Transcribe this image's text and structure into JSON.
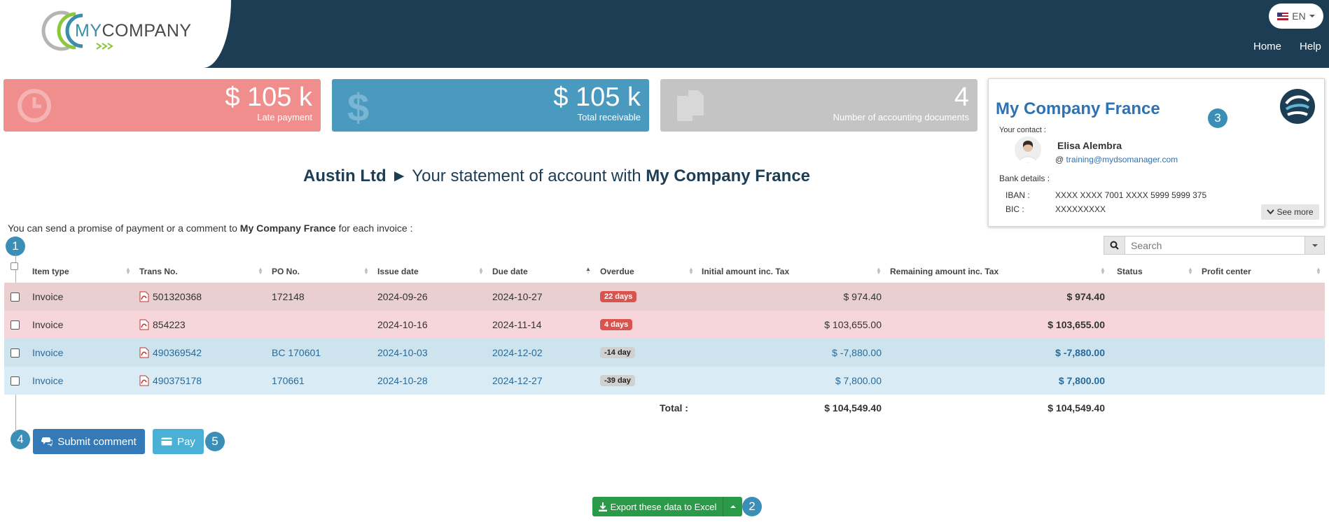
{
  "brand": {
    "prefix": "MY",
    "suffix": "COMPANY"
  },
  "header": {
    "language": "EN",
    "nav": [
      {
        "label": "Home"
      },
      {
        "label": "Help"
      }
    ]
  },
  "kpis": [
    {
      "value": "$ 105 k",
      "label": "Late payment",
      "color": "#f08d8d",
      "icon": "clock-icon"
    },
    {
      "value": "$ 105 k",
      "label": "Total receivable",
      "color": "#4a9abf",
      "icon": "dollar-icon"
    },
    {
      "value": "4",
      "label": "Number of accounting documents",
      "color": "#c4c4c4",
      "icon": "documents-icon"
    }
  ],
  "contact_card": {
    "company": "My Company France",
    "contact_label": "Your contact :",
    "contact_name": "Elisa Alembra",
    "email_prefix": "@",
    "email": "training@mydsomanager.com",
    "bank_label": "Bank details :",
    "iban_label": "IBAN :",
    "iban": "XXXX XXXX 7001 XXXX 5999 5999 375",
    "bic_label": "BIC :",
    "bic": "XXXXXXXXX",
    "see_more": "See more"
  },
  "steps": [
    "1",
    "2",
    "3",
    "4",
    "5"
  ],
  "heading": {
    "customer": "Austin Ltd",
    "arrow": "►",
    "middle": "Your statement of account with",
    "company": "My Company France"
  },
  "intro": {
    "before": "You can send a promise of payment or a comment to",
    "company": "My Company France",
    "after": "for each invoice :"
  },
  "search": {
    "placeholder": "Search"
  },
  "table": {
    "columns": [
      "Item type",
      "Trans No.",
      "PO No.",
      "Issue date",
      "Due date",
      "Overdue",
      "Initial amount inc. Tax",
      "Remaining amount inc. Tax",
      "Status",
      "Profit center"
    ],
    "rows": [
      {
        "type": "Invoice",
        "trans": "501320368",
        "po": "172148",
        "issue": "2024-09-26",
        "due": "2024-10-27",
        "overdue": "22 days",
        "initial": "$ 974.40",
        "remaining": "$ 974.40",
        "status": "",
        "profit": ""
      },
      {
        "type": "Invoice",
        "trans": "854223",
        "po": "",
        "issue": "2024-10-16",
        "due": "2024-11-14",
        "overdue": "4 days",
        "initial": "$ 103,655.00",
        "remaining": "$ 103,655.00",
        "status": "",
        "profit": ""
      },
      {
        "type": "Invoice",
        "trans": "490369542",
        "po": "BC 170601",
        "issue": "2024-10-03",
        "due": "2024-12-02",
        "overdue": "-14 day",
        "initial": "$ -7,880.00",
        "remaining": "$ -7,880.00",
        "status": "",
        "profit": ""
      },
      {
        "type": "Invoice",
        "trans": "490375178",
        "po": "170661",
        "issue": "2024-10-28",
        "due": "2024-12-27",
        "overdue": "-39 day",
        "initial": "$ 7,800.00",
        "remaining": "$ 7,800.00",
        "status": "",
        "profit": ""
      }
    ],
    "total_label": "Total :",
    "total_initial": "$ 104,549.40",
    "total_remaining": "$ 104,549.40"
  },
  "actions": {
    "submit_comment": "Submit comment",
    "pay": "Pay",
    "export": "Export these data to Excel"
  }
}
